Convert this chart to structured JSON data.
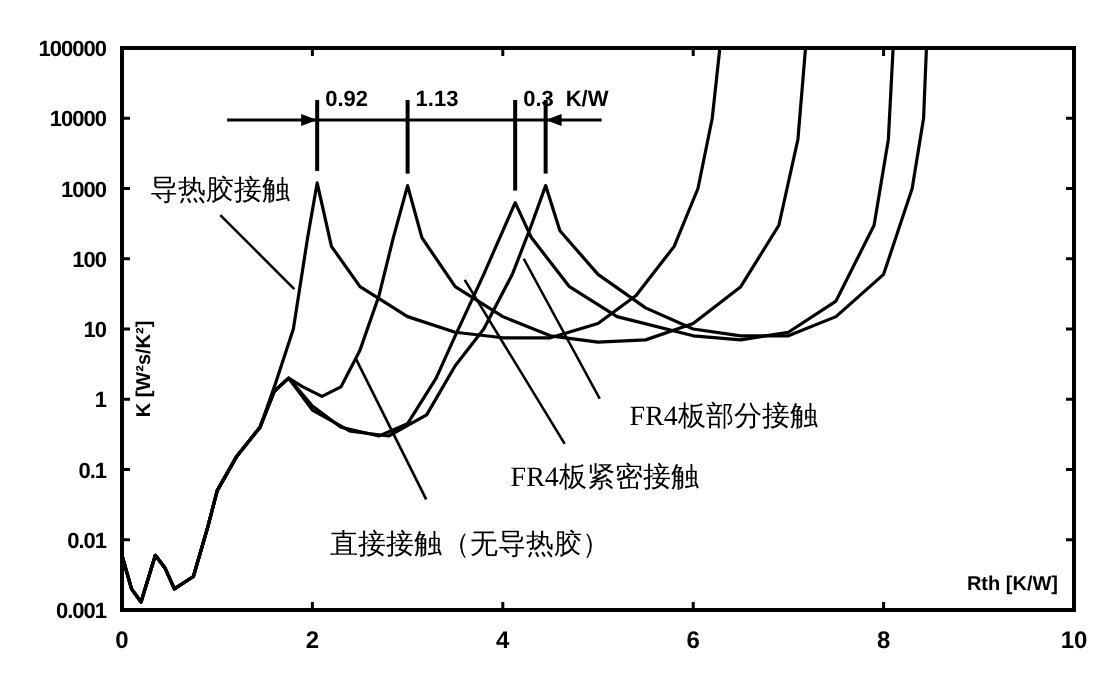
{
  "chart_data": {
    "type": "line",
    "xlabel": "Rth [K/W]",
    "ylabel": "K [W²s/K²]",
    "log": "y",
    "grid": false,
    "marker": "none",
    "line_style": "solid",
    "xlim": [
      0,
      10
    ],
    "xticks": [
      0,
      2,
      4,
      6,
      8,
      10
    ],
    "ylim": [
      0.001,
      100000
    ],
    "yticks": [
      0.001,
      0.01,
      0.1,
      1,
      10,
      100,
      1000,
      10000,
      100000
    ],
    "series": [
      {
        "color": "#000000",
        "x": [
          0,
          0.1,
          0.2,
          0.35,
          0.45,
          0.55,
          0.75,
          0.9,
          1.0,
          1.2,
          1.45,
          1.6,
          1.8,
          1.95,
          2.05,
          2.2,
          2.5,
          3.0,
          3.5,
          4.0,
          4.5,
          5.0,
          5.4,
          5.8,
          6.05,
          6.2,
          6.28
        ],
        "values": [
          0.006,
          0.002,
          0.0013,
          0.006,
          0.004,
          0.002,
          0.003,
          0.015,
          0.05,
          0.15,
          0.4,
          1.5,
          10,
          200,
          1200,
          150,
          40,
          15,
          9,
          7.5,
          7.5,
          12,
          30,
          150,
          1000,
          10000,
          100000
        ]
      },
      {
        "color": "#000000",
        "x": [
          0,
          0.1,
          0.2,
          0.35,
          0.45,
          0.55,
          0.75,
          0.9,
          1.0,
          1.2,
          1.45,
          1.6,
          1.75,
          1.9,
          2.1,
          2.3,
          2.5,
          2.7,
          2.85,
          3.0,
          3.15,
          3.5,
          4.0,
          4.5,
          5.0,
          5.5,
          6.0,
          6.5,
          6.9,
          7.1,
          7.18
        ],
        "values": [
          0.006,
          0.002,
          0.0013,
          0.006,
          0.004,
          0.002,
          0.003,
          0.015,
          0.05,
          0.15,
          0.4,
          1.3,
          2,
          1.5,
          1.1,
          1.5,
          5,
          30,
          200,
          1100,
          200,
          40,
          15,
          8,
          6.5,
          7,
          12,
          40,
          300,
          5000,
          100000
        ]
      },
      {
        "color": "#000000",
        "x": [
          0,
          0.1,
          0.2,
          0.35,
          0.45,
          0.55,
          0.75,
          0.9,
          1.0,
          1.2,
          1.45,
          1.6,
          1.75,
          2.0,
          2.3,
          2.7,
          3.0,
          3.3,
          3.5,
          3.8,
          4.0,
          4.13,
          4.3,
          4.7,
          5.2,
          6.0,
          6.5,
          7.0,
          7.5,
          7.9,
          8.05,
          8.1
        ],
        "values": [
          0.006,
          0.002,
          0.0013,
          0.006,
          0.004,
          0.002,
          0.003,
          0.015,
          0.05,
          0.15,
          0.4,
          1.3,
          2,
          0.8,
          0.4,
          0.3,
          0.45,
          2,
          8,
          60,
          250,
          630,
          200,
          40,
          15,
          8,
          7,
          9,
          25,
          300,
          5000,
          100000
        ]
      },
      {
        "color": "#000000",
        "x": [
          0,
          0.1,
          0.2,
          0.35,
          0.45,
          0.55,
          0.75,
          0.9,
          1.0,
          1.2,
          1.45,
          1.6,
          1.75,
          2.0,
          2.4,
          2.8,
          3.2,
          3.5,
          3.8,
          4.1,
          4.3,
          4.45,
          4.6,
          5.0,
          5.5,
          6.0,
          6.5,
          7.0,
          7.5,
          8.0,
          8.3,
          8.42,
          8.45
        ],
        "values": [
          0.006,
          0.002,
          0.0013,
          0.006,
          0.004,
          0.002,
          0.003,
          0.015,
          0.05,
          0.15,
          0.4,
          1.3,
          2,
          0.7,
          0.35,
          0.3,
          0.6,
          3,
          10,
          60,
          300,
          1100,
          250,
          60,
          20,
          10,
          8,
          8,
          15,
          60,
          1000,
          10000,
          100000
        ]
      }
    ],
    "annotations": [
      {
        "text": "导热胶接触",
        "x": 1.81,
        "y": 37
      },
      {
        "text": "直接接触（无导热胶）",
        "x": 2.46,
        "y": 3.7
      },
      {
        "text": "FR4板紧密接触",
        "x": 3.6,
        "y": 50
      },
      {
        "text": "FR4板部分接触",
        "x": 4.22,
        "y": 100
      },
      {
        "text": "0.92",
        "x": 2.05,
        "y": 1200
      },
      {
        "text": "1.13",
        "x": 3.0,
        "y": 1100
      },
      {
        "text": "0.3",
        "x": 4.13,
        "y": 630
      },
      {
        "text": "K/W",
        "x": 4.45,
        "y": 1100
      }
    ]
  }
}
